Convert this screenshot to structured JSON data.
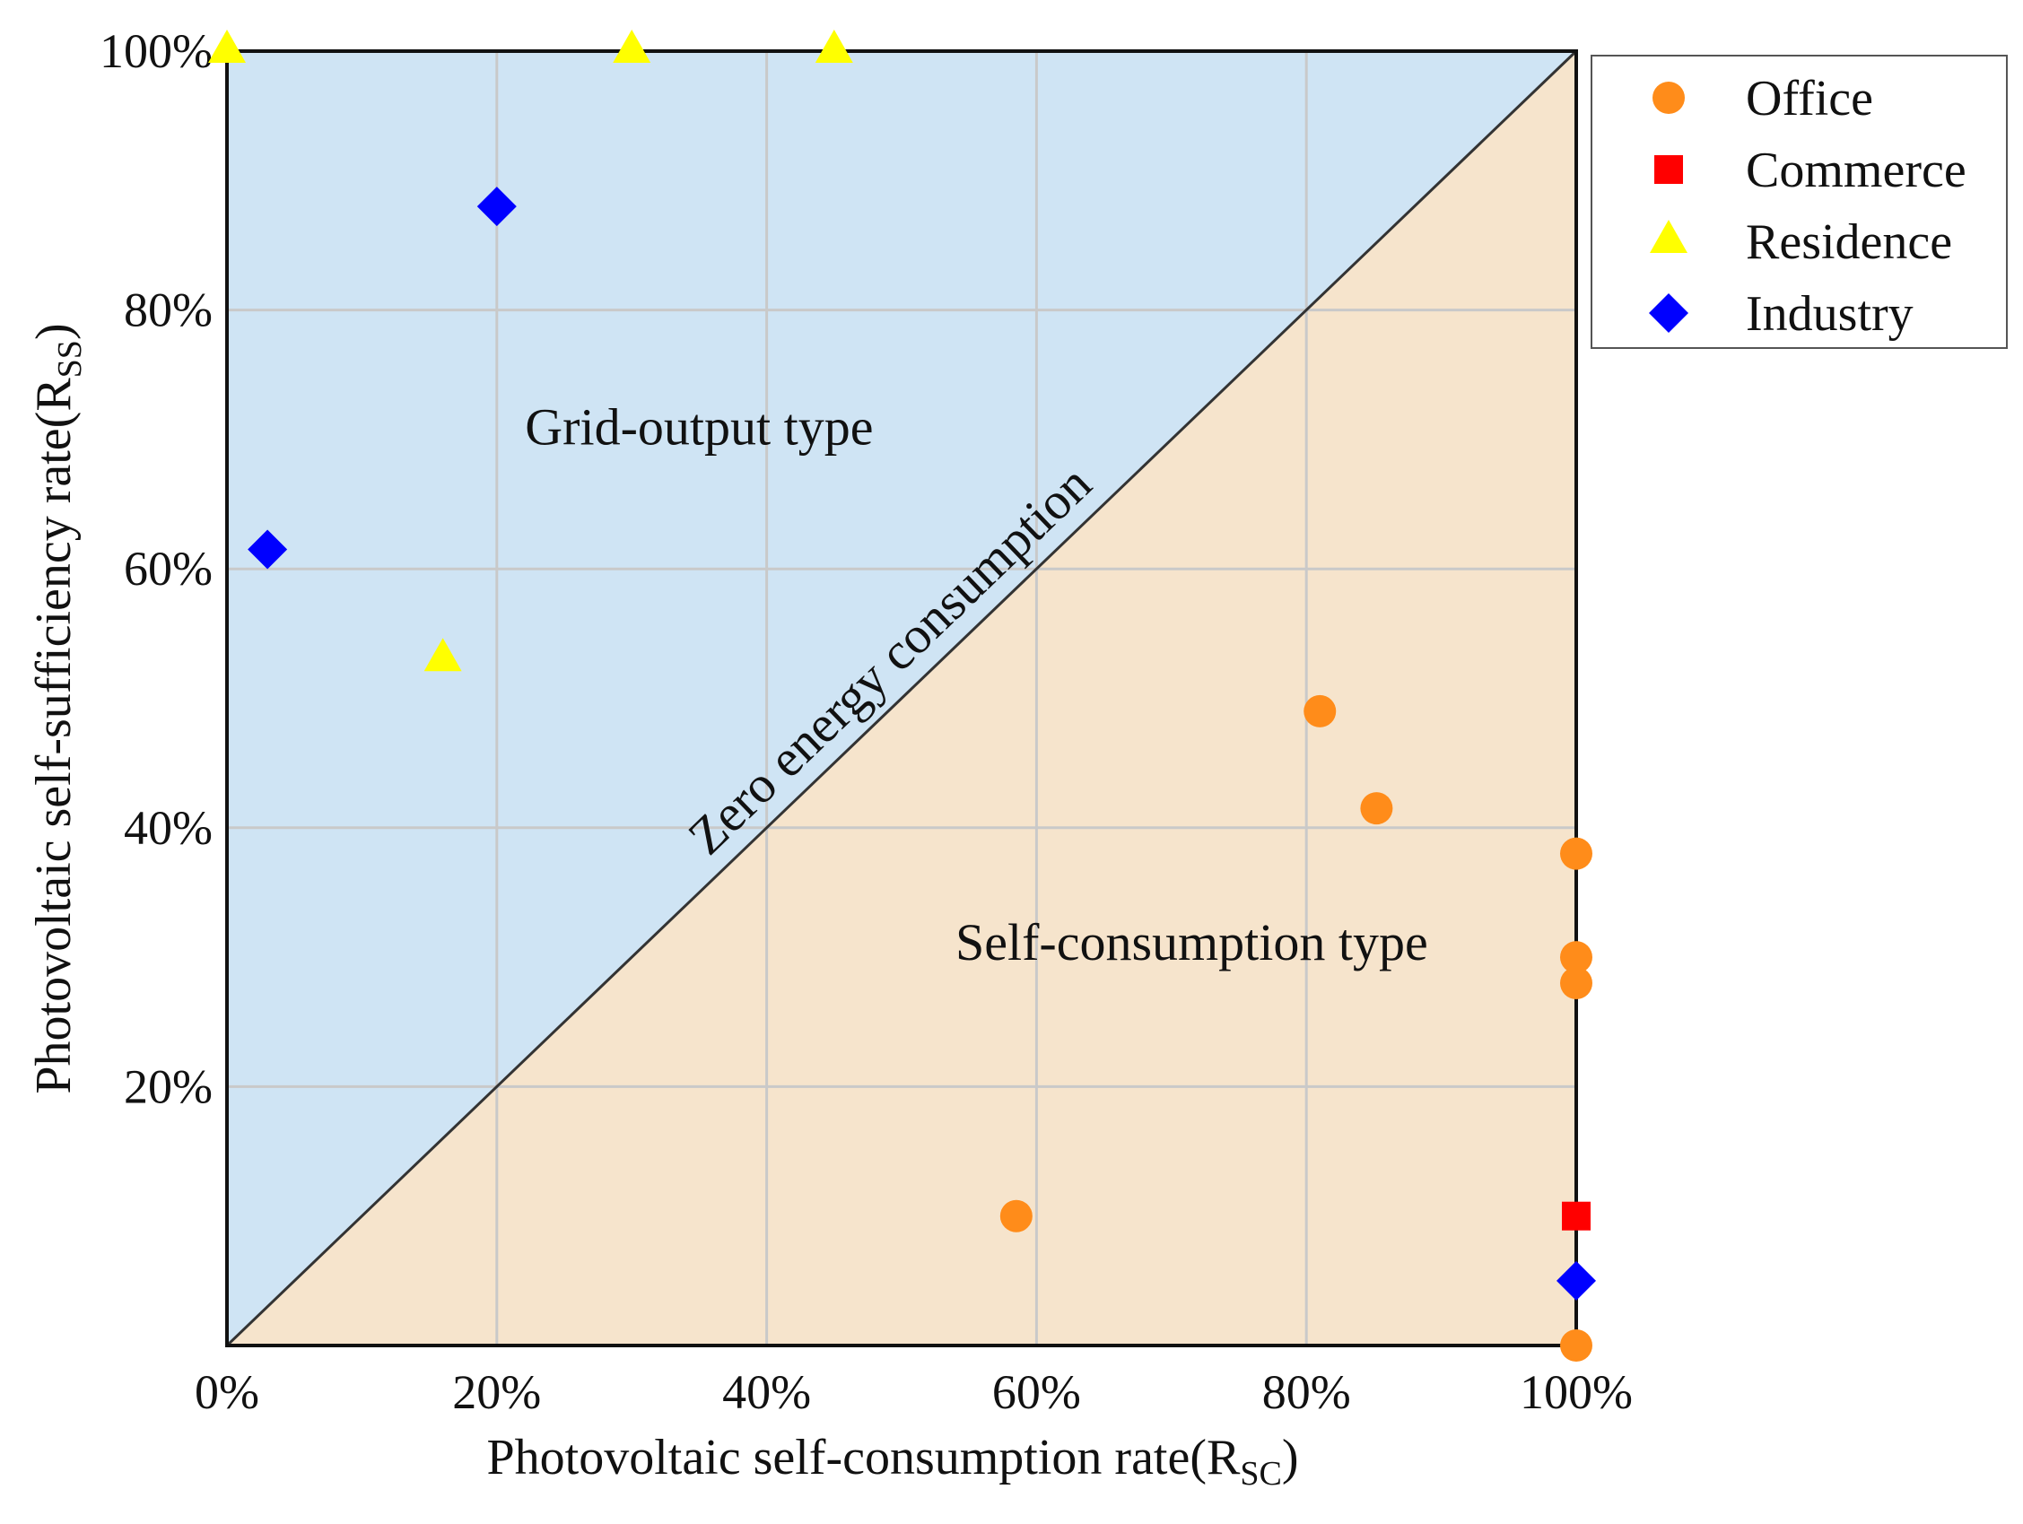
{
  "chart_data": {
    "type": "scatter",
    "xlabel": "Photovoltaic self-consumption rate",
    "xlabel_sub": "SC",
    "ylabel": "Photovoltaic self-sufficiency rate",
    "ylabel_sub": "SS",
    "xlim": [
      0,
      100
    ],
    "ylim": [
      0,
      100
    ],
    "x_ticks": [
      {
        "value": 0,
        "label": "0%"
      },
      {
        "value": 20,
        "label": "20%"
      },
      {
        "value": 40,
        "label": "40%"
      },
      {
        "value": 60,
        "label": "60%"
      },
      {
        "value": 80,
        "label": "80%"
      },
      {
        "value": 100,
        "label": "100%"
      }
    ],
    "y_ticks": [
      {
        "value": 20,
        "label": "20%"
      },
      {
        "value": 40,
        "label": "40%"
      },
      {
        "value": 60,
        "label": "60%"
      },
      {
        "value": 80,
        "label": "80%"
      },
      {
        "value": 100,
        "label": "100%"
      }
    ],
    "grid": true,
    "legend_position": "top-right, outside plot",
    "regions": {
      "upper": {
        "label": "Grid-output type",
        "color": "#cfe4f4"
      },
      "lower": {
        "label": "Self-consumption type",
        "color": "#f6e4cc"
      },
      "diagonal": {
        "label": "Zero energy consumption",
        "color": "#333333"
      }
    },
    "series": [
      {
        "name": "Office",
        "marker": "circle",
        "color": "#ff8c1a",
        "points": [
          {
            "x": 81,
            "y": 49
          },
          {
            "x": 85.2,
            "y": 41.5
          },
          {
            "x": 100,
            "y": 38
          },
          {
            "x": 100,
            "y": 30
          },
          {
            "x": 100,
            "y": 28
          },
          {
            "x": 58.5,
            "y": 10
          },
          {
            "x": 100,
            "y": 0
          }
        ]
      },
      {
        "name": "Commerce",
        "marker": "square",
        "color": "#ff0000",
        "points": [
          {
            "x": 100,
            "y": 10
          }
        ]
      },
      {
        "name": "Residence",
        "marker": "triangle",
        "color": "#ffff00",
        "points": [
          {
            "x": 0,
            "y": 100
          },
          {
            "x": 30,
            "y": 100
          },
          {
            "x": 45,
            "y": 100
          },
          {
            "x": 16,
            "y": 53
          }
        ]
      },
      {
        "name": "Industry",
        "marker": "diamond",
        "color": "#0000ff",
        "points": [
          {
            "x": 20,
            "y": 88
          },
          {
            "x": 3,
            "y": 61.5
          },
          {
            "x": 100,
            "y": 5
          }
        ]
      }
    ]
  }
}
